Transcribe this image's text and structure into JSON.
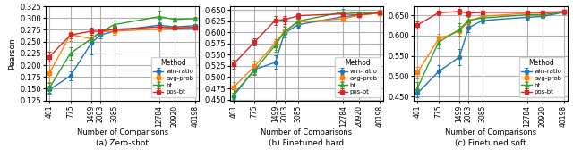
{
  "chart_data": [
    {
      "type": "line",
      "title": "(a) Zero-shot",
      "x_label": "Number of Comparisons",
      "y_label": "Pearson",
      "log": "x",
      "grid": true,
      "legend": "lower right",
      "legend_title": "Method",
      "x": [
        401,
        775,
        1499,
        2003,
        3085,
        12784,
        20920,
        40198
      ],
      "xlim": [
        357.4,
        45103
      ],
      "xticks": [
        401,
        775,
        1499,
        2003,
        3085,
        12784,
        20920,
        40198
      ],
      "ylim": [
        0.125,
        0.325
      ],
      "yticks": [
        {
          "value": 0.125,
          "label": "0.125"
        },
        {
          "value": 0.15,
          "label": "0.150"
        },
        {
          "value": 0.175,
          "label": "0.175"
        },
        {
          "value": 0.2,
          "label": "0.200"
        },
        {
          "value": 0.225,
          "label": "0.225"
        },
        {
          "value": 0.25,
          "label": "0.250"
        },
        {
          "value": 0.275,
          "label": "0.275"
        },
        {
          "value": 0.3,
          "label": "0.300"
        },
        {
          "value": 0.325,
          "label": "0.325"
        }
      ],
      "series": [
        {
          "name": "win-ratio",
          "marker": "circle",
          "values": [
            0.148,
            0.177,
            0.247,
            0.264,
            0.272,
            0.285,
            0.281,
            0.284
          ],
          "errors": [
            0.008,
            0.01,
            0.025,
            0.008,
            0.007,
            0.006,
            0.003,
            0.003
          ]
        },
        {
          "name": "avg-prob",
          "marker": "square",
          "values": [
            0.183,
            0.265,
            0.256,
            0.271,
            0.272,
            0.277,
            0.279,
            0.28
          ],
          "errors": [
            0.018,
            0.013,
            0.008,
            0.007,
            0.007,
            0.005,
            0.003,
            0.003
          ]
        },
        {
          "name": "bt",
          "marker": "triangle",
          "values": [
            0.152,
            0.225,
            0.256,
            0.27,
            0.286,
            0.303,
            0.297,
            0.299
          ],
          "errors": [
            0.01,
            0.013,
            0.008,
            0.008,
            0.008,
            0.012,
            0.004,
            0.004
          ]
        },
        {
          "name": "pos-bt",
          "marker": "square",
          "values": [
            0.218,
            0.264,
            0.272,
            0.272,
            0.276,
            0.281,
            0.279,
            0.28
          ],
          "errors": [
            0.01,
            0.007,
            0.007,
            0.006,
            0.006,
            0.005,
            0.003,
            0.003
          ]
        }
      ]
    },
    {
      "type": "line",
      "title": "(b) Finetuned hard",
      "x_label": "Number of Comparisons",
      "log": "x",
      "grid": true,
      "legend": "lower right",
      "legend_title": "Method",
      "x": [
        401,
        775,
        1499,
        2003,
        3085,
        12784,
        20920,
        40198
      ],
      "xlim": [
        357.4,
        45103
      ],
      "xticks": [
        401,
        775,
        1499,
        2003,
        3085,
        12784,
        20920,
        40198
      ],
      "ylim": [
        0.448,
        0.658
      ],
      "yticks": [
        {
          "value": 0.45,
          "label": "0.450"
        },
        {
          "value": 0.475,
          "label": "0.475"
        },
        {
          "value": 0.5,
          "label": "0.500"
        },
        {
          "value": 0.525,
          "label": "0.525"
        },
        {
          "value": 0.55,
          "label": "0.550"
        },
        {
          "value": 0.575,
          "label": "0.575"
        },
        {
          "value": 0.6,
          "label": "0.600"
        },
        {
          "value": 0.625,
          "label": "0.625"
        },
        {
          "value": 0.65,
          "label": "0.650"
        }
      ],
      "series": [
        {
          "name": "win-ratio",
          "marker": "circle",
          "values": [
            0.458,
            0.517,
            0.533,
            0.598,
            0.617,
            0.635,
            0.638,
            0.643
          ],
          "errors": [
            0.008,
            0.01,
            0.015,
            0.009,
            0.007,
            0.005,
            0.003,
            0.003
          ]
        },
        {
          "name": "avg-prob",
          "marker": "square",
          "values": [
            0.477,
            0.524,
            0.576,
            0.602,
            0.623,
            0.63,
            0.638,
            0.643
          ],
          "errors": [
            0.012,
            0.012,
            0.015,
            0.012,
            0.007,
            0.005,
            0.003,
            0.003
          ]
        },
        {
          "name": "bt",
          "marker": "triangle",
          "values": [
            0.462,
            0.515,
            0.571,
            0.601,
            0.625,
            0.645,
            0.643,
            0.645
          ],
          "errors": [
            0.011,
            0.011,
            0.014,
            0.011,
            0.008,
            0.007,
            0.004,
            0.003
          ]
        },
        {
          "name": "pos-bt",
          "marker": "square",
          "values": [
            0.529,
            0.578,
            0.627,
            0.628,
            0.637,
            0.641,
            0.639,
            0.644
          ],
          "errors": [
            0.01,
            0.008,
            0.01,
            0.009,
            0.006,
            0.005,
            0.003,
            0.003
          ]
        }
      ]
    },
    {
      "type": "line",
      "title": "(c) Finetuned soft",
      "x_label": "Number of Comparisons",
      "log": "x",
      "grid": true,
      "legend": "lower right",
      "legend_title": "Method",
      "x": [
        401,
        775,
        1499,
        2003,
        3085,
        12784,
        20920,
        40198
      ],
      "xlim": [
        357.4,
        45103
      ],
      "xticks": [
        401,
        775,
        1499,
        2003,
        3085,
        12784,
        20920,
        40198
      ],
      "ylim": [
        0.44,
        0.672
      ],
      "yticks": [
        {
          "value": 0.45,
          "label": "0.450"
        },
        {
          "value": 0.5,
          "label": "0.500"
        },
        {
          "value": 0.55,
          "label": "0.550"
        },
        {
          "value": 0.6,
          "label": "0.600"
        },
        {
          "value": 0.65,
          "label": "0.650"
        }
      ],
      "series": [
        {
          "name": "win-ratio",
          "marker": "circle",
          "values": [
            0.458,
            0.511,
            0.547,
            0.619,
            0.637,
            0.645,
            0.647,
            0.657
          ],
          "errors": [
            0.01,
            0.015,
            0.02,
            0.011,
            0.007,
            0.005,
            0.004,
            0.003
          ]
        },
        {
          "name": "avg-prob",
          "marker": "square",
          "values": [
            0.509,
            0.591,
            0.611,
            0.635,
            0.647,
            0.655,
            0.655,
            0.658
          ],
          "errors": [
            0.014,
            0.012,
            0.013,
            0.01,
            0.007,
            0.005,
            0.004,
            0.003
          ]
        },
        {
          "name": "bt",
          "marker": "triangle",
          "values": [
            0.471,
            0.583,
            0.615,
            0.638,
            0.643,
            0.651,
            0.651,
            0.658
          ],
          "errors": [
            0.015,
            0.014,
            0.015,
            0.01,
            0.007,
            0.005,
            0.004,
            0.003
          ]
        },
        {
          "name": "pos-bt",
          "marker": "square",
          "values": [
            0.626,
            0.656,
            0.659,
            0.655,
            0.657,
            0.657,
            0.657,
            0.659
          ],
          "errors": [
            0.008,
            0.006,
            0.006,
            0.006,
            0.004,
            0.003,
            0.003,
            0.003
          ]
        }
      ]
    }
  ]
}
